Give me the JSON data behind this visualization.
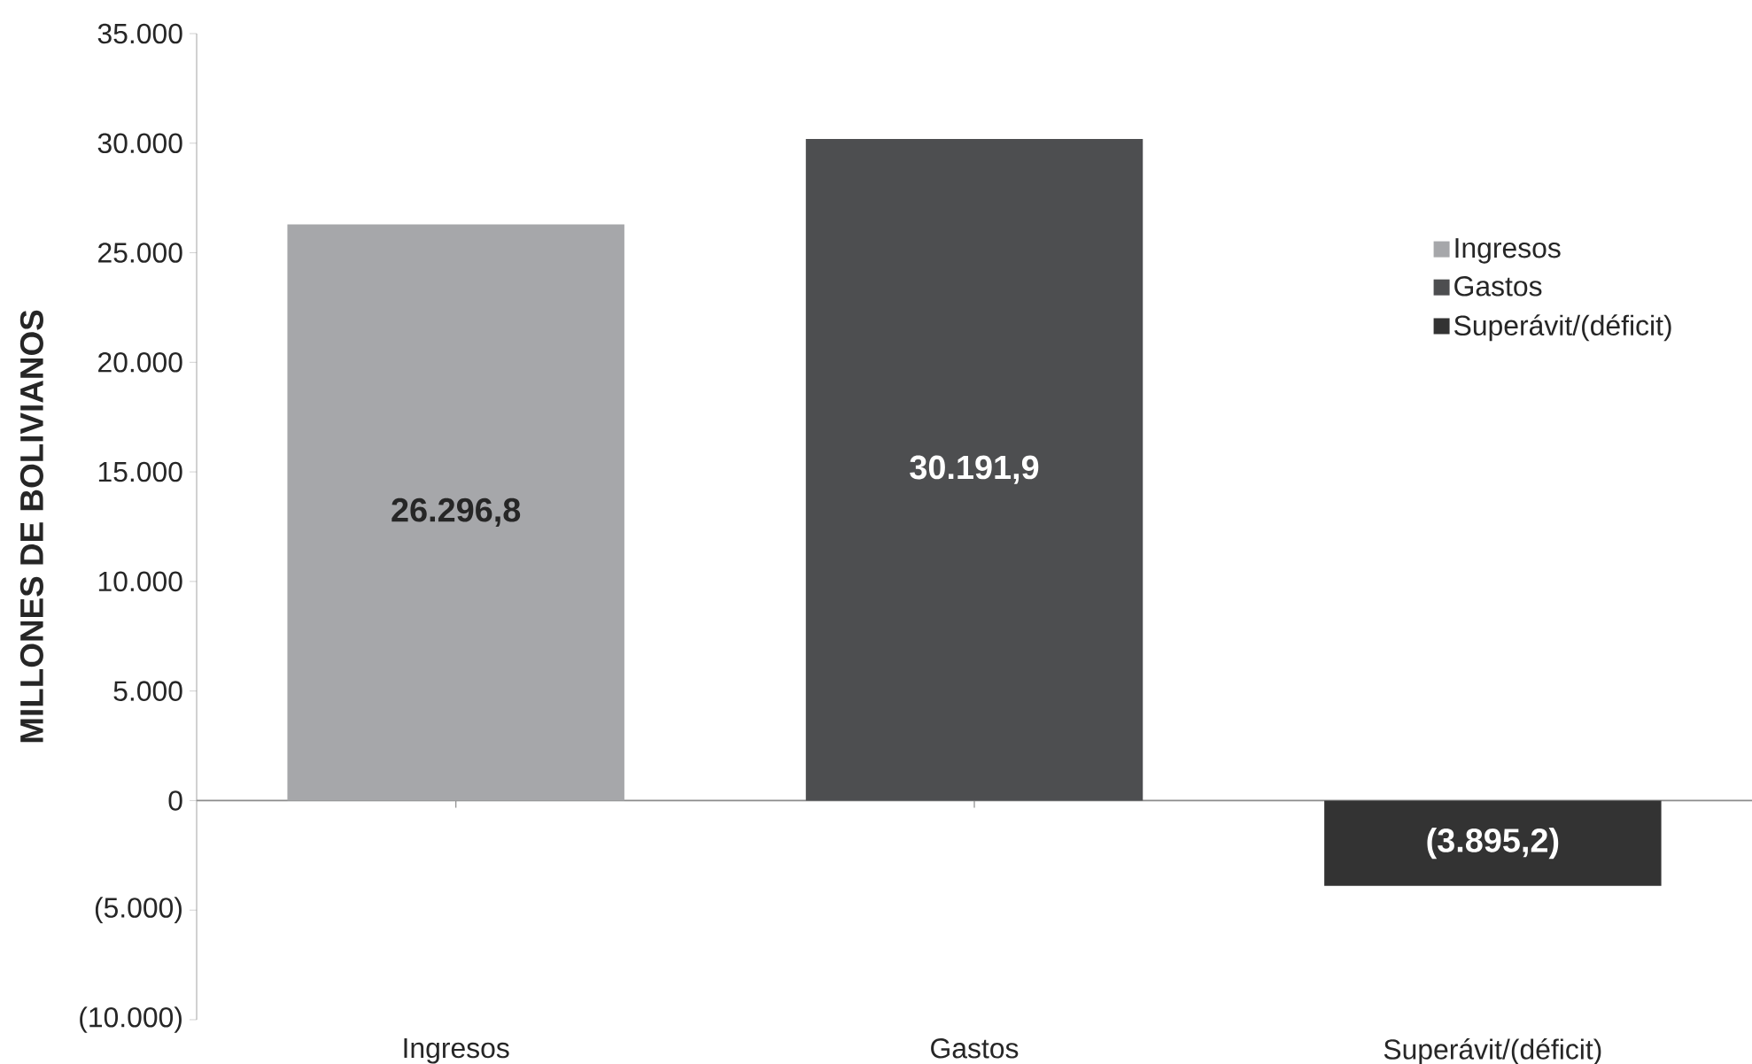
{
  "chart_data": {
    "type": "bar",
    "ylabel": "MILLONES DE BOLIVIANOS",
    "categories": [
      "Ingresos",
      "Gastos",
      "Superávit/(déficit)"
    ],
    "series": [
      {
        "name": "Ingresos",
        "color": "#a6a7aa",
        "values": [
          26296.8,
          null,
          null
        ],
        "value_labels": [
          "26.296,8",
          null,
          null
        ]
      },
      {
        "name": "Gastos",
        "color": "#4d4e50",
        "values": [
          null,
          30191.9,
          null
        ],
        "value_labels": [
          null,
          "30.191,9",
          null
        ]
      },
      {
        "name": "Superávit/(déficit)",
        "color": "#333333",
        "values": [
          null,
          null,
          -3895.2
        ],
        "value_labels": [
          null,
          null,
          "(3.895,2)"
        ]
      }
    ],
    "ylim": [
      -10000,
      35000
    ],
    "yticks": [
      {
        "value": -10000,
        "label": "(10.000)"
      },
      {
        "value": -5000,
        "label": "(5.000)"
      },
      0,
      {
        "value": 5000,
        "label": "5.000"
      },
      {
        "value": 10000,
        "label": "10.000"
      },
      {
        "value": 15000,
        "label": "15.000"
      },
      {
        "value": 20000,
        "label": "20.000"
      },
      {
        "value": 25000,
        "label": "25.000"
      },
      {
        "value": 30000,
        "label": "30.000"
      },
      {
        "value": 35000,
        "label": "35.000"
      }
    ],
    "legend": "top right"
  }
}
